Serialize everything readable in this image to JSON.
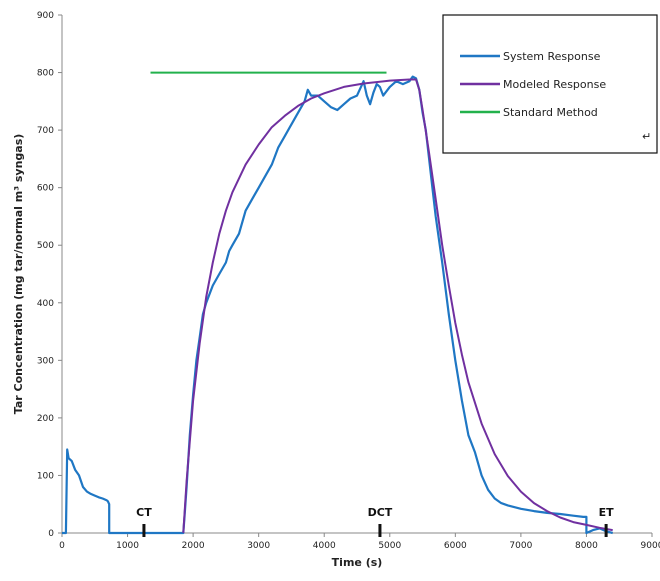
{
  "chart_data": {
    "type": "line",
    "title": "",
    "xlabel": "Time (s)",
    "ylabel": "Tar Concentration (mg tar/normal m³ syngas)",
    "xlim": [
      0,
      9000
    ],
    "ylim": [
      0,
      900
    ],
    "xticks": [
      0,
      1000,
      2000,
      3000,
      4000,
      5000,
      6000,
      7000,
      8000,
      9000
    ],
    "yticks": [
      0,
      100,
      200,
      300,
      400,
      500,
      600,
      700,
      800,
      900
    ],
    "grid": false,
    "legend": "top-right",
    "series": [
      {
        "name": "System Response",
        "color": "#1f77c4",
        "x": [
          0,
          60,
          80,
          100,
          150,
          200,
          260,
          320,
          380,
          440,
          500,
          560,
          620,
          680,
          700,
          720,
          720,
          800,
          1000,
          1200,
          1400,
          1600,
          1800,
          1850,
          1870,
          1900,
          1950,
          2000,
          2050,
          2100,
          2150,
          2200,
          2300,
          2400,
          2500,
          2550,
          2600,
          2700,
          2800,
          2900,
          3000,
          3100,
          3200,
          3300,
          3400,
          3500,
          3600,
          3700,
          3750,
          3800,
          3900,
          4000,
          4100,
          4200,
          4300,
          4400,
          4500,
          4600,
          4650,
          4700,
          4750,
          4800,
          4850,
          4900,
          5000,
          5100,
          5200,
          5300,
          5350,
          5400,
          5450,
          5500,
          5550,
          5600,
          5650,
          5700,
          5800,
          5900,
          6000,
          6100,
          6200,
          6300,
          6400,
          6500,
          6600,
          6700,
          6800,
          7000,
          7200,
          7400,
          7600,
          7800,
          7950,
          8000,
          8000,
          8100,
          8200,
          8300,
          8400
        ],
        "y": [
          0,
          0,
          145,
          130,
          125,
          110,
          100,
          80,
          72,
          68,
          65,
          62,
          60,
          57,
          55,
          50,
          0,
          0,
          0,
          0,
          0,
          0,
          0,
          0,
          30,
          80,
          170,
          240,
          300,
          340,
          380,
          400,
          430,
          450,
          470,
          490,
          500,
          520,
          560,
          580,
          600,
          620,
          640,
          670,
          690,
          710,
          730,
          750,
          770,
          760,
          760,
          750,
          740,
          735,
          745,
          755,
          760,
          785,
          760,
          745,
          765,
          780,
          775,
          760,
          775,
          785,
          780,
          785,
          793,
          790,
          770,
          730,
          700,
          650,
          600,
          550,
          470,
          380,
          300,
          230,
          170,
          140,
          100,
          75,
          60,
          52,
          48,
          42,
          38,
          35,
          33,
          30,
          28,
          28,
          0,
          5,
          8,
          3,
          0
        ]
      },
      {
        "name": "Modeled Response",
        "color": "#7030a0",
        "x": [
          1850,
          1900,
          2000,
          2100,
          2200,
          2300,
          2400,
          2500,
          2600,
          2800,
          3000,
          3200,
          3400,
          3600,
          3800,
          4000,
          4300,
          4600,
          5000,
          5300,
          5400,
          5450,
          5500,
          5600,
          5700,
          5800,
          5900,
          6000,
          6100,
          6200,
          6400,
          6600,
          6800,
          7000,
          7200,
          7400,
          7600,
          7800,
          8000,
          8200,
          8400
        ],
        "y": [
          0,
          90,
          230,
          330,
          410,
          470,
          520,
          560,
          592,
          640,
          675,
          705,
          725,
          742,
          755,
          764,
          775,
          781,
          786,
          788,
          788,
          770,
          735,
          660,
          580,
          500,
          430,
          365,
          310,
          262,
          190,
          137,
          99,
          72,
          52,
          38,
          27,
          19,
          14,
          9,
          5
        ]
      },
      {
        "name": "Standard Method",
        "color": "#22b14c",
        "x": [
          1350,
          4950
        ],
        "y": [
          800,
          800
        ]
      }
    ],
    "markers": [
      {
        "label": "CT",
        "x": 1250
      },
      {
        "label": "DCT",
        "x": 4850
      },
      {
        "label": "ET",
        "x": 8300
      }
    ],
    "legend_extra": "↵"
  }
}
